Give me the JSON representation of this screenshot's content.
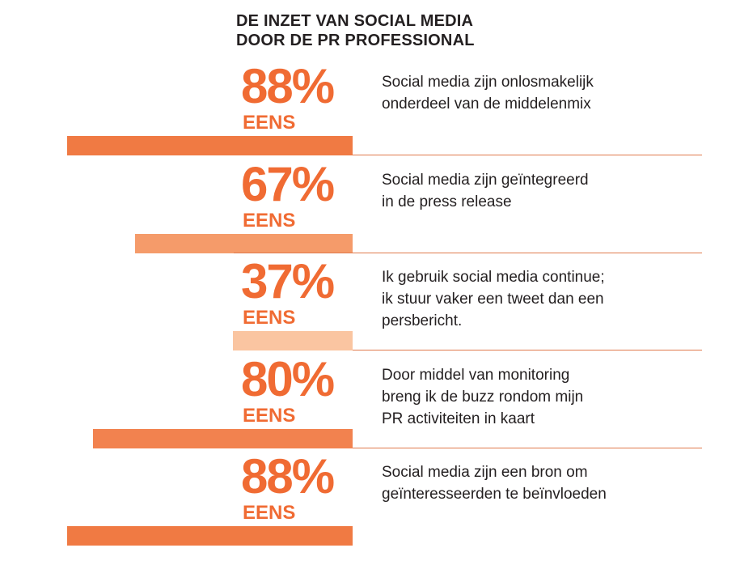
{
  "title_lines": [
    "DE INZET VAN SOCIAL MEDIA",
    "DOOR DE PR PROFESSIONAL"
  ],
  "chart_data": {
    "type": "bar",
    "orientation": "horizontal",
    "unit": "%",
    "xlim": [
      0,
      100
    ],
    "categories": [
      "Social media zijn onlosmakelijk onderdeel van de middelenmix",
      "Social media zijn geïntegreerd in de press release",
      "Ik gebruik social media continue; ik stuur vaker een tweet dan een persbericht.",
      "Door middel van monitoring breng ik de buzz rondom mijn PR activiteiten in kaart",
      "Social media zijn een bron om geïnteresseerden te beïnvloeden"
    ],
    "values": [
      88,
      67,
      37,
      80,
      88
    ],
    "bar_colors": [
      "#f07a43",
      "#f59b6a",
      "#fac5a1",
      "#f2824f",
      "#f07a43"
    ],
    "text_color": "#f06b33"
  },
  "rows": [
    {
      "pct": "88%",
      "label": "EENS",
      "desc": [
        "Social media zijn onlosmakelijk",
        "onderdeel van de middelenmix"
      ]
    },
    {
      "pct": "67%",
      "label": "EENS",
      "desc": [
        "Social media zijn geïntegreerd",
        "in de press release"
      ]
    },
    {
      "pct": "37%",
      "label": "EENS",
      "desc": [
        "Ik gebruik social media continue;",
        "ik stuur vaker een tweet dan een",
        "persbericht."
      ]
    },
    {
      "pct": "80%",
      "label": "EENS",
      "desc": [
        "Door middel van monitoring",
        "breng ik de buzz rondom mijn",
        "PR activiteiten in kaart"
      ]
    },
    {
      "pct": "88%",
      "label": "EENS",
      "desc": [
        "Social media zijn een bron om",
        "geïnteresseerden te beïnvloeden"
      ]
    }
  ]
}
